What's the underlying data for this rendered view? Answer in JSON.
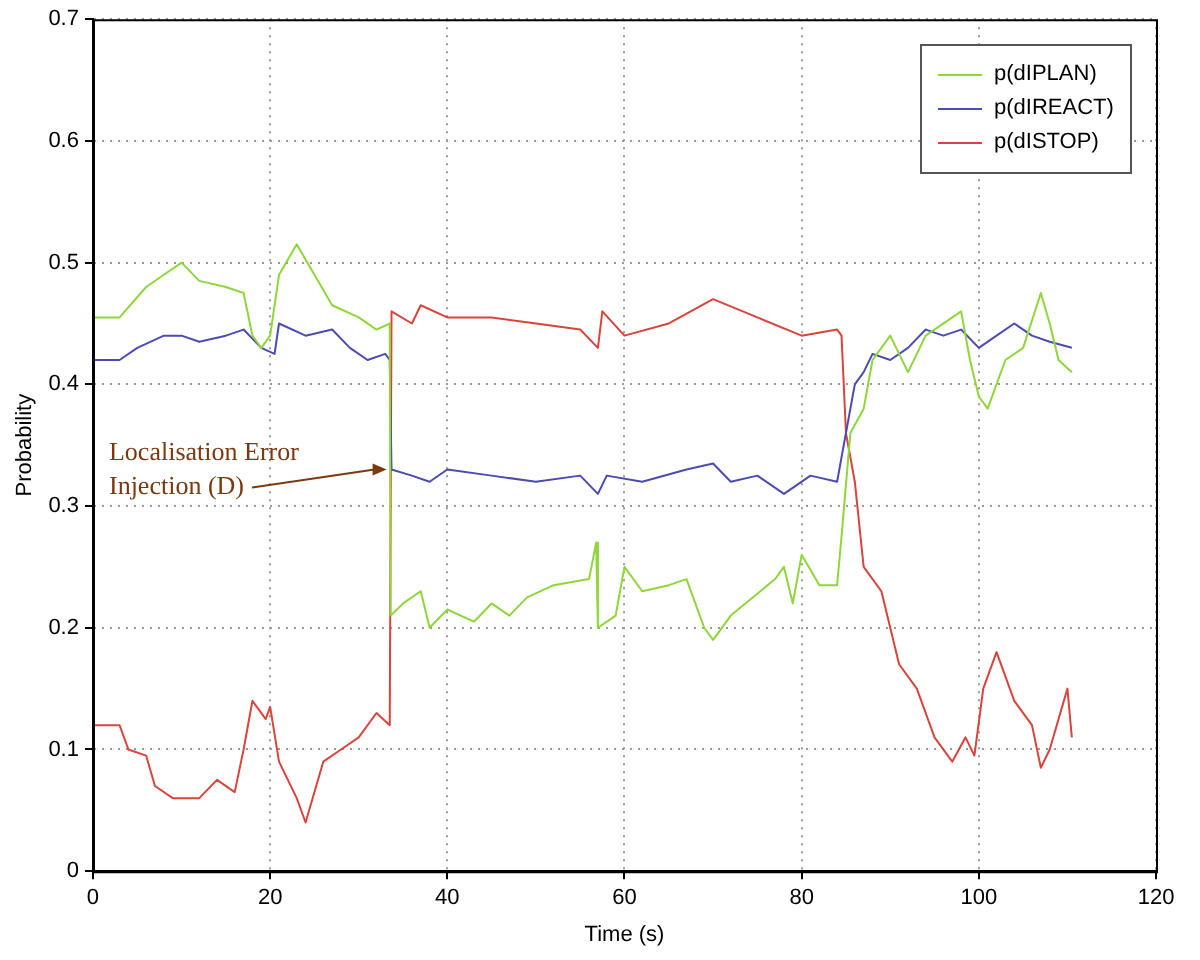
{
  "chart_data": {
    "type": "line",
    "xlabel": "Time (s)",
    "ylabel": "Probability",
    "xlim": [
      0,
      120
    ],
    "ylim": [
      0,
      0.7
    ],
    "xticks": [
      0,
      20,
      40,
      60,
      80,
      100,
      120
    ],
    "yticks": [
      0,
      0.1,
      0.2,
      0.3,
      0.4,
      0.5,
      0.6,
      0.7
    ],
    "grid": true,
    "legend": "top right",
    "line_style": "solid",
    "annotations": [
      {
        "text": "Localisation Error\nInjection (D)",
        "x": 33.6,
        "y": 0.33
      }
    ],
    "series": [
      {
        "name": "p(dIPLAN)",
        "color": "#8fd63a",
        "x": [
          0,
          3,
          6,
          8,
          10,
          12,
          15,
          17,
          18,
          19,
          20,
          21,
          23,
          25,
          27,
          30,
          32,
          33.5,
          33.6,
          35,
          37,
          38,
          40,
          43,
          45,
          47,
          49,
          52,
          56,
          56.8,
          57,
          59,
          60,
          62,
          65,
          67,
          69,
          70,
          72,
          77,
          78,
          79,
          80,
          82,
          84,
          84.5,
          85.5,
          87,
          88,
          90,
          92,
          94,
          98,
          99,
          100,
          101,
          103,
          105,
          107,
          108,
          109,
          110.5
        ],
        "values": [
          0.455,
          0.455,
          0.48,
          0.49,
          0.5,
          0.485,
          0.48,
          0.475,
          0.44,
          0.43,
          0.44,
          0.49,
          0.515,
          0.49,
          0.465,
          0.455,
          0.445,
          0.45,
          0.21,
          0.22,
          0.23,
          0.2,
          0.215,
          0.205,
          0.22,
          0.21,
          0.225,
          0.235,
          0.24,
          0.27,
          0.2,
          0.21,
          0.25,
          0.23,
          0.235,
          0.24,
          0.2,
          0.19,
          0.21,
          0.24,
          0.25,
          0.22,
          0.26,
          0.235,
          0.235,
          0.275,
          0.36,
          0.38,
          0.42,
          0.44,
          0.41,
          0.44,
          0.46,
          0.42,
          0.39,
          0.38,
          0.42,
          0.43,
          0.475,
          0.45,
          0.42,
          0.41
        ]
      },
      {
        "name": "p(dIREACT)",
        "color": "#4b4bb4",
        "x": [
          0,
          3,
          5,
          8,
          10,
          12,
          15,
          17,
          19,
          20.5,
          21,
          24,
          27,
          29,
          31,
          33,
          33.5,
          33.7,
          36,
          38,
          40,
          45,
          50,
          55,
          57,
          58,
          62,
          67,
          70,
          72,
          75,
          78,
          81,
          84,
          85,
          86,
          87,
          88,
          90,
          92,
          94,
          96,
          98,
          100,
          102,
          104,
          106,
          108,
          110.5
        ],
        "values": [
          0.42,
          0.42,
          0.43,
          0.44,
          0.44,
          0.435,
          0.44,
          0.445,
          0.43,
          0.425,
          0.45,
          0.44,
          0.445,
          0.43,
          0.42,
          0.425,
          0.42,
          0.33,
          0.325,
          0.32,
          0.33,
          0.325,
          0.32,
          0.325,
          0.31,
          0.325,
          0.32,
          0.33,
          0.335,
          0.32,
          0.325,
          0.31,
          0.325,
          0.32,
          0.36,
          0.4,
          0.41,
          0.425,
          0.42,
          0.43,
          0.445,
          0.44,
          0.445,
          0.43,
          0.44,
          0.45,
          0.44,
          0.435,
          0.43
        ]
      },
      {
        "name": "p(dISTOP)",
        "color": "#d9443c",
        "x": [
          0,
          3,
          4,
          6,
          7,
          9,
          12,
          14,
          16,
          17,
          18,
          19.5,
          20,
          21,
          23,
          24,
          26,
          28,
          30,
          32,
          33.5,
          33.7,
          36,
          37,
          40,
          45,
          50,
          55,
          57,
          57.5,
          60,
          65,
          70,
          75,
          80,
          84,
          84.5,
          85,
          86,
          87,
          89,
          91,
          93,
          95,
          97,
          98.5,
          99.5,
          100.5,
          102,
          104,
          106,
          107,
          108,
          110,
          110.5
        ],
        "values": [
          0.12,
          0.12,
          0.1,
          0.095,
          0.07,
          0.06,
          0.06,
          0.075,
          0.065,
          0.1,
          0.14,
          0.125,
          0.135,
          0.09,
          0.06,
          0.04,
          0.09,
          0.1,
          0.11,
          0.13,
          0.12,
          0.46,
          0.45,
          0.465,
          0.455,
          0.455,
          0.45,
          0.445,
          0.43,
          0.46,
          0.44,
          0.45,
          0.47,
          0.455,
          0.44,
          0.445,
          0.44,
          0.36,
          0.32,
          0.25,
          0.23,
          0.17,
          0.15,
          0.11,
          0.09,
          0.11,
          0.095,
          0.15,
          0.18,
          0.14,
          0.12,
          0.085,
          0.1,
          0.15,
          0.11
        ]
      }
    ]
  }
}
